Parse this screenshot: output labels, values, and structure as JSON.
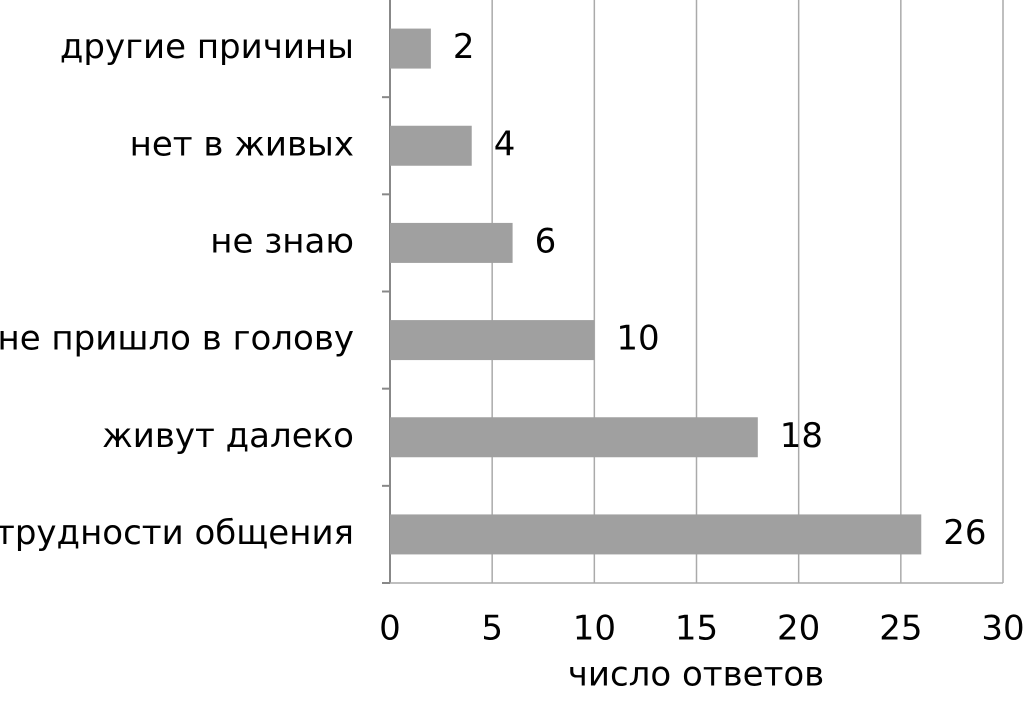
{
  "chart_data": {
    "type": "bar",
    "orientation": "horizontal",
    "x_label": "число ответов",
    "categories": [
      "другие причины",
      "нет в живых",
      "не знаю",
      "не пришло в голову",
      "живут далеко",
      "трудности общения"
    ],
    "values": [
      2,
      4,
      6,
      10,
      18,
      26
    ],
    "color": "#a0a0a0",
    "xlim": [
      0,
      30
    ],
    "xticks": [
      0,
      5,
      10,
      15,
      20,
      25,
      30
    ],
    "grid": true
  }
}
